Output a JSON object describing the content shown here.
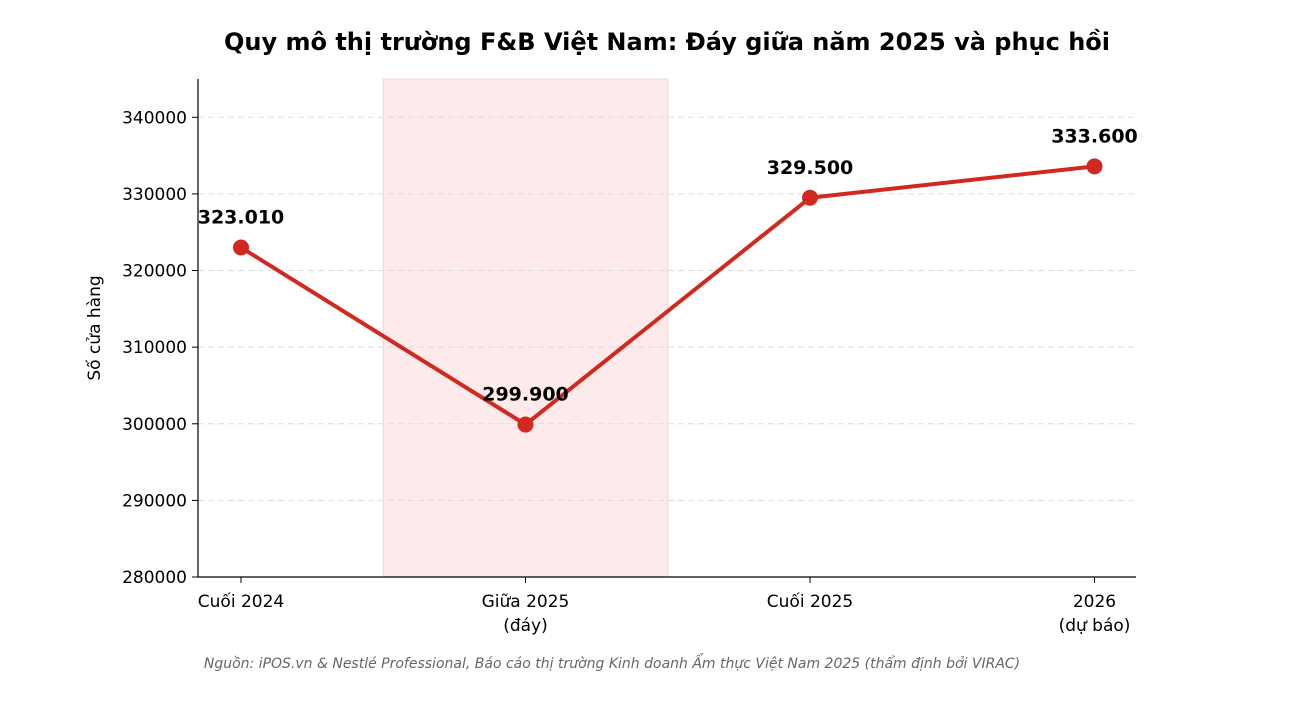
{
  "chart_data": {
    "type": "line",
    "title": "Quy mô thị trường F&B Việt Nam: Đáy giữa năm 2025 và phục hồi",
    "ylabel": "Số cửa hàng",
    "xlabel": "",
    "categories": [
      [
        "Cuối 2024"
      ],
      [
        "Giữa 2025",
        "(đáy)"
      ],
      [
        "Cuối 2025"
      ],
      [
        "2026",
        "(dự báo)"
      ]
    ],
    "values": [
      323010,
      299900,
      329500,
      333600
    ],
    "data_labels": [
      "323.010",
      "299.900",
      "329.500",
      "333.600"
    ],
    "ylim": [
      280000,
      345000
    ],
    "yticks": [
      280000,
      290000,
      300000,
      310000,
      320000,
      330000,
      340000
    ],
    "ytick_labels": [
      "280000",
      "290000",
      "300000",
      "310000",
      "320000",
      "330000",
      "340000"
    ],
    "highlight_span": {
      "from_category": 0.5,
      "to_category": 1.5,
      "color": "#fdeaea"
    },
    "grid": "y-dashed",
    "line_color": "#d1281f",
    "source": "Nguồn: iPOS.vn & Nestlé Professional, Báo cáo thị trường Kinh doanh Ẩm thực Việt Nam 2025 (thẩm định bởi VIRAC)"
  }
}
